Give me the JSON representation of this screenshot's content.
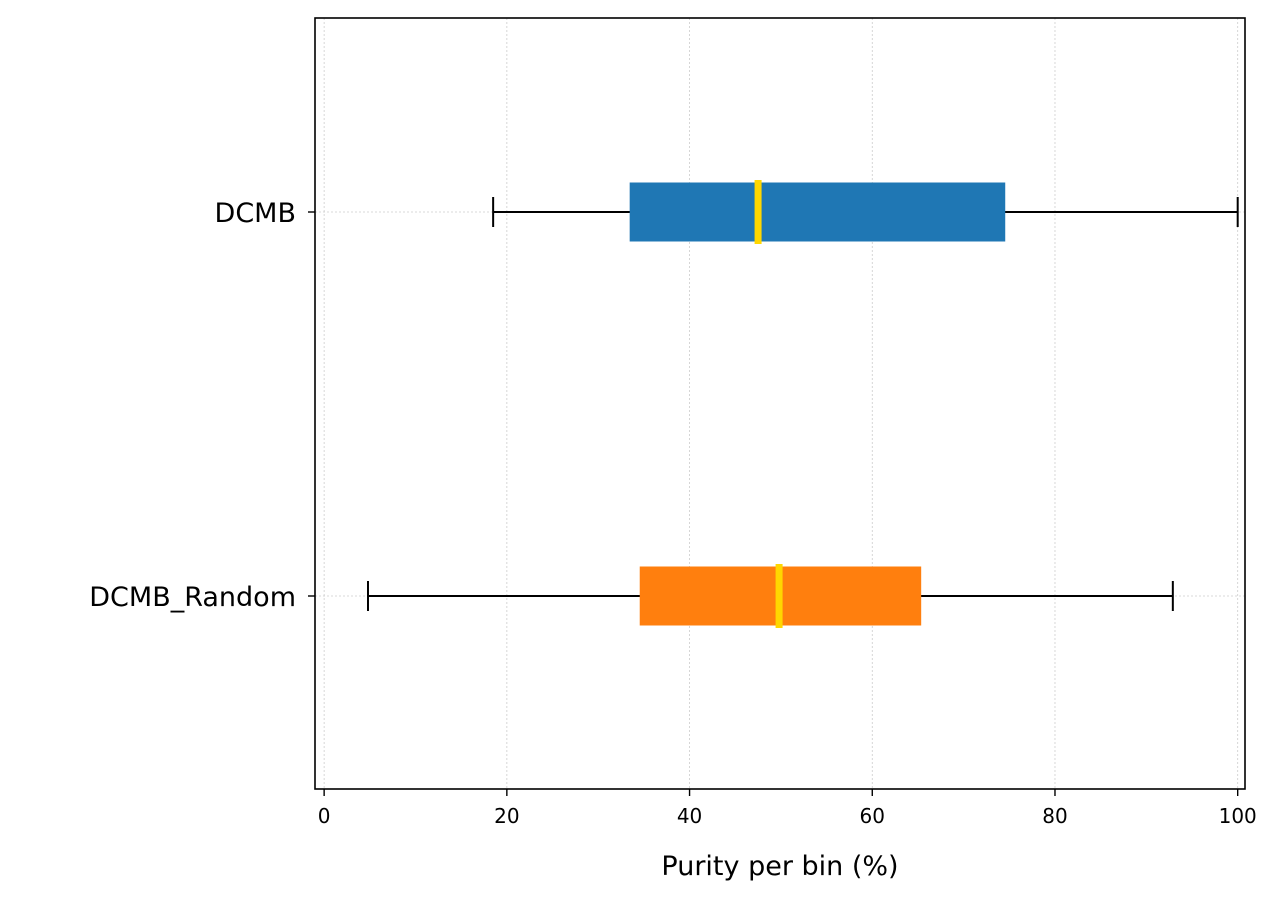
{
  "chart_data": {
    "type": "boxplot",
    "orientation": "horizontal",
    "xlabel": "Purity per bin (%)",
    "ylabel": "",
    "title": "",
    "xlim": [
      -1,
      100.8
    ],
    "xticks": [
      0,
      20,
      40,
      60,
      80,
      100
    ],
    "grid": true,
    "categories": [
      "DCMB",
      "DCMB_Random"
    ],
    "series": [
      {
        "name": "DCMB",
        "color": "#1f77b4",
        "whisker_low": 18.5,
        "q1": 33.5,
        "median": 47.5,
        "q3": 74.5,
        "whisker_high": 100
      },
      {
        "name": "DCMB_Random",
        "color": "#ff7f0e",
        "whisker_low": 4.8,
        "q1": 34.6,
        "median": 49.8,
        "q3": 65.3,
        "whisker_high": 92.9
      }
    ],
    "median_color": "#ffd700",
    "whisker_color": "#000000"
  }
}
